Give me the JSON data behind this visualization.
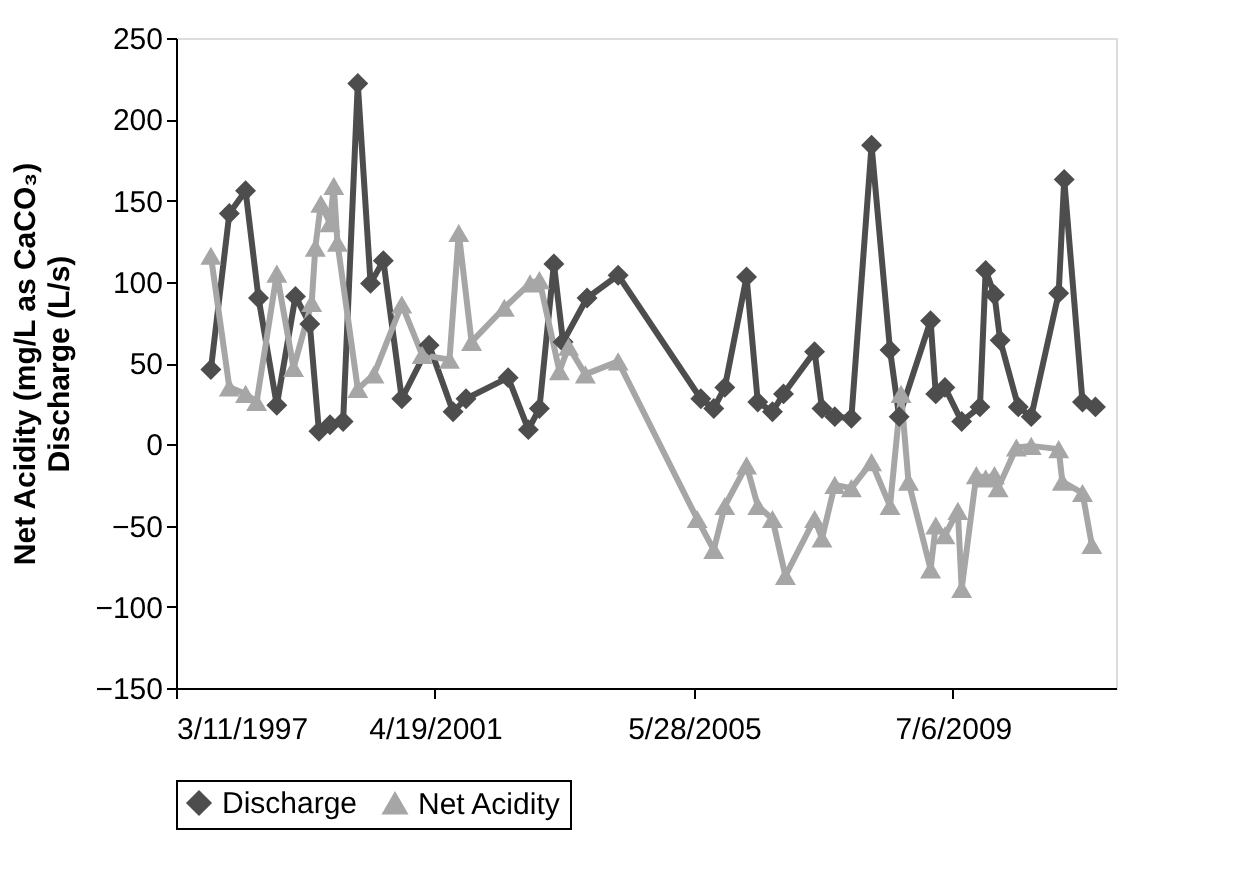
{
  "chart_data": {
    "type": "line",
    "ylabel": "Net Acidity (mg/L as CaCO₃)\nDischarge (L/s)",
    "xlim": [
      "1997-03-11",
      "2012-02-06"
    ],
    "xticks": [
      {
        "value": "1997-03-11",
        "label": "3/11/1997"
      },
      {
        "value": "2001-04-19",
        "label": "4/19/2001"
      },
      {
        "value": "2005-05-28",
        "label": "5/28/2005"
      },
      {
        "value": "2009-07-06",
        "label": "7/6/2009"
      }
    ],
    "ylim": [
      -150,
      250
    ],
    "yticks": [
      -150,
      -100,
      -50,
      0,
      50,
      100,
      150,
      200,
      250
    ],
    "grid": false,
    "legend": "bottom",
    "series": [
      {
        "name": "Discharge",
        "color": "#4d4d4d",
        "marker": "diamond",
        "x": [
          "1997-09-29",
          "1998-01-14",
          "1998-04-18",
          "1998-07-02",
          "1998-10-16",
          "1999-02-01",
          "1999-04-25",
          "1999-06-17",
          "1999-08-20",
          "1999-11-04",
          "2000-01-28",
          "2000-04-11",
          "2000-06-24",
          "2000-10-09",
          "2001-03-16",
          "2001-08-02",
          "2001-10-16",
          "2002-06-17",
          "2002-10-12",
          "2002-12-15",
          "2003-03-09",
          "2003-05-01",
          "2003-09-17",
          "2004-03-15",
          "2005-07-07",
          "2005-09-20",
          "2005-11-23",
          "2006-03-29",
          "2006-06-02",
          "2006-08-26",
          "2006-10-29",
          "2007-04-27",
          "2007-06-09",
          "2007-08-22",
          "2007-11-26",
          "2008-03-22",
          "2008-07-07",
          "2008-08-29",
          "2009-02-27",
          "2009-03-29",
          "2009-05-21",
          "2009-08-26",
          "2009-12-10",
          "2010-01-12",
          "2010-03-04",
          "2010-04-06",
          "2010-07-20",
          "2010-10-03",
          "2011-03-11",
          "2011-04-12",
          "2011-07-27",
          "2011-10-10"
        ],
        "values": [
          46,
          142,
          156,
          90,
          24,
          91,
          74,
          8,
          12,
          14,
          222,
          99,
          113,
          28,
          61,
          20,
          28,
          41,
          9,
          22,
          111,
          63,
          90,
          104,
          28,
          22,
          35,
          103,
          26,
          20,
          31,
          57,
          22,
          17,
          16,
          184,
          58,
          17,
          76,
          31,
          35,
          14,
          23,
          107,
          92,
          64,
          23,
          17,
          93,
          163,
          26,
          23
        ]
      },
      {
        "name": "Net Acidity",
        "color": "#a6a6a6",
        "marker": "triangle",
        "x": [
          "1997-09-29",
          "1998-01-14",
          "1998-04-18",
          "1998-06-21",
          "1998-10-16",
          "1999-01-21",
          "1999-05-06",
          "1999-05-27",
          "1999-06-28",
          "1999-08-20",
          "1999-09-11",
          "1999-10-02",
          "2000-01-28",
          "2000-05-01",
          "2000-10-09",
          "2001-02-04",
          "2001-07-12",
          "2001-09-04",
          "2001-11-17",
          "2002-05-26",
          "2002-10-22",
          "2002-12-15",
          "2003-04-10",
          "2003-06-02",
          "2003-09-07",
          "2004-03-15",
          "2005-06-16",
          "2005-09-20",
          "2005-11-23",
          "2006-03-29",
          "2006-06-02",
          "2006-08-26",
          "2006-11-09",
          "2007-04-27",
          "2007-06-09",
          "2007-08-22",
          "2007-11-26",
          "2008-03-22",
          "2008-07-07",
          "2008-09-09",
          "2008-10-22",
          "2009-02-27",
          "2009-03-29",
          "2009-05-21",
          "2009-08-04",
          "2009-08-26",
          "2009-11-19",
          "2010-01-12",
          "2010-03-04",
          "2010-03-25",
          "2010-07-09",
          "2010-10-03",
          "2011-03-11",
          "2011-04-01",
          "2011-07-27",
          "2011-09-19"
        ],
        "values": [
          116,
          35,
          31,
          26,
          105,
          47,
          87,
          121,
          148,
          136,
          159,
          124,
          34,
          43,
          86,
          55,
          52,
          130,
          63,
          84,
          99,
          101,
          45,
          60,
          43,
          51,
          -46,
          -65,
          -38,
          -13,
          -38,
          -46,
          -81,
          -46,
          -58,
          -25,
          -27,
          -11,
          -38,
          31,
          -23,
          -77,
          -50,
          -56,
          -41,
          -89,
          -19,
          -21,
          -19,
          -27,
          -2,
          -1,
          -3,
          -23,
          -30,
          -62
        ]
      }
    ]
  }
}
